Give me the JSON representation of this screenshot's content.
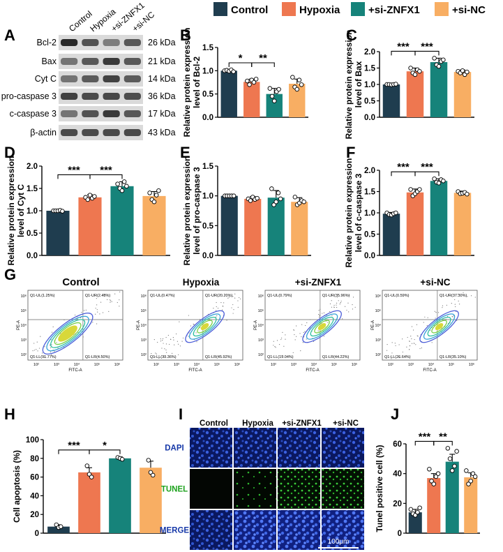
{
  "colors": {
    "control": "#1f3d4f",
    "hypoxia": "#ee7750",
    "sizn": "#16837a",
    "sinc": "#f8ae63",
    "blot_bg": "#dadada",
    "band": "#4a4a4a",
    "dapi": "#1638a8",
    "tunel": "#1ea21e",
    "merge": "#1638a8"
  },
  "legend": [
    "Control",
    "Hypoxia",
    "+si-ZNFX1",
    "+si-NC"
  ],
  "panel_labels": {
    "A": "A",
    "B": "B",
    "C": "C",
    "D": "D",
    "E": "E",
    "F": "F",
    "G": "G",
    "H": "H",
    "I": "I",
    "J": "J"
  },
  "western": {
    "lanes": [
      "Control",
      "Hypoxia",
      "+si-ZNFX1",
      "+si-NC"
    ],
    "rows": [
      {
        "name": "Bcl-2",
        "kda": "26 kDa",
        "levels": [
          1.0,
          0.76,
          0.5,
          0.72
        ]
      },
      {
        "name": "Bax",
        "kda": "21 kDa",
        "levels": [
          0.55,
          0.72,
          0.9,
          0.72
        ]
      },
      {
        "name": "Cyt C",
        "kda": "14 kDa",
        "levels": [
          0.55,
          0.7,
          0.85,
          0.7
        ]
      },
      {
        "name": "pro-caspase 3",
        "kda": "36 kDa",
        "levels": [
          0.85,
          0.8,
          0.82,
          0.78
        ]
      },
      {
        "name": "c-caspase 3",
        "kda": "17 kDa",
        "levels": [
          0.55,
          0.75,
          0.9,
          0.72
        ]
      },
      {
        "name": "β-actin",
        "kda": "43 kDa",
        "levels": [
          0.8,
          0.8,
          0.8,
          0.8
        ]
      }
    ]
  },
  "chart_data": [
    {
      "id": "B",
      "type": "bar",
      "categories": [
        "Control",
        "Hypoxia",
        "+si-ZNFX1",
        "+si-NC"
      ],
      "values": [
        1.0,
        0.76,
        0.5,
        0.72
      ],
      "errors": [
        0.02,
        0.06,
        0.12,
        0.1
      ],
      "points": [
        [
          1.0,
          1.01,
          0.99,
          1.02,
          0.98
        ],
        [
          0.78,
          0.7,
          0.8,
          0.75,
          0.82
        ],
        [
          0.62,
          0.45,
          0.35,
          0.55,
          0.6
        ],
        [
          0.86,
          0.65,
          0.6,
          0.8,
          0.7
        ]
      ],
      "ylabel": "Relative protein expression level of Bcl-2",
      "ylim": [
        0,
        1.5
      ],
      "yticks": [
        "0.0",
        "0.5",
        "1.0",
        "1.5"
      ],
      "sig": [
        {
          "from": 0,
          "to": 1,
          "label": "*"
        },
        {
          "from": 1,
          "to": 2,
          "label": "**"
        }
      ]
    },
    {
      "id": "C",
      "type": "bar",
      "categories": [
        "Control",
        "Hypoxia",
        "+si-ZNFX1",
        "+si-NC"
      ],
      "values": [
        1.0,
        1.4,
        1.68,
        1.38
      ],
      "errors": [
        0.02,
        0.1,
        0.12,
        0.06
      ],
      "points": [
        [
          1.0,
          1.0,
          0.99,
          1.0,
          1.01
        ],
        [
          1.5,
          1.35,
          1.3,
          1.45,
          1.4
        ],
        [
          1.8,
          1.6,
          1.55,
          1.7,
          1.75
        ],
        [
          1.4,
          1.35,
          1.42,
          1.3,
          1.38
        ]
      ],
      "ylabel": "Relative protein expression level of Bax",
      "ylim": [
        0,
        2.0
      ],
      "yticks": [
        "0.0",
        "0.5",
        "1.0",
        "1.5",
        "2.0"
      ],
      "sig": [
        {
          "from": 0,
          "to": 1,
          "label": "***"
        },
        {
          "from": 1,
          "to": 2,
          "label": "***"
        }
      ]
    },
    {
      "id": "D",
      "type": "bar",
      "categories": [
        "Control",
        "Hypoxia",
        "+si-ZNFX1",
        "+si-NC"
      ],
      "values": [
        1.0,
        1.3,
        1.55,
        1.33
      ],
      "errors": [
        0.01,
        0.06,
        0.1,
        0.1
      ],
      "points": [
        [
          1.0,
          1.0,
          1.0,
          1.01,
          0.99
        ],
        [
          1.3,
          1.25,
          1.35,
          1.28,
          1.32
        ],
        [
          1.6,
          1.5,
          1.45,
          1.65,
          1.55
        ],
        [
          1.4,
          1.25,
          1.2,
          1.35,
          1.45
        ]
      ],
      "ylabel": "Relative protein expression level of Cyt C",
      "ylim": [
        0,
        2.0
      ],
      "yticks": [
        "0.0",
        "0.5",
        "1.0",
        "1.5",
        "2.0"
      ],
      "sig": [
        {
          "from": 0,
          "to": 1,
          "label": "***"
        },
        {
          "from": 1,
          "to": 2,
          "label": "***"
        }
      ]
    },
    {
      "id": "E",
      "type": "bar",
      "categories": [
        "Control",
        "Hypoxia",
        "+si-ZNFX1",
        "+si-NC"
      ],
      "values": [
        1.0,
        0.95,
        0.97,
        0.9
      ],
      "errors": [
        0.01,
        0.04,
        0.12,
        0.07
      ],
      "points": [
        [
          1.0,
          1.0,
          1.0,
          1.0,
          1.0
        ],
        [
          0.95,
          0.92,
          0.98,
          0.94,
          0.96
        ],
        [
          1.12,
          0.85,
          0.9,
          1.05,
          0.95
        ],
        [
          0.98,
          0.85,
          0.88,
          0.92,
          0.9
        ]
      ],
      "ylabel": "Relative protein expression level of pro-caspase 3",
      "ylim": [
        0,
        1.5
      ],
      "yticks": [
        "0.0",
        "0.5",
        "1.0",
        "1.5"
      ],
      "sig": []
    },
    {
      "id": "F",
      "type": "bar",
      "categories": [
        "Control",
        "Hypoxia",
        "+si-ZNFX1",
        "+si-NC"
      ],
      "values": [
        0.98,
        1.48,
        1.75,
        1.47
      ],
      "errors": [
        0.03,
        0.08,
        0.05,
        0.04
      ],
      "points": [
        [
          1.0,
          0.96,
          0.95,
          0.98,
          1.0
        ],
        [
          1.55,
          1.4,
          1.45,
          1.5,
          1.55
        ],
        [
          1.8,
          1.72,
          1.7,
          1.78,
          1.75
        ],
        [
          1.5,
          1.45,
          1.46,
          1.48,
          1.44
        ]
      ],
      "ylabel": "Relative protein expression level of c-caspase 3",
      "ylim": [
        0,
        2.0
      ],
      "yticks": [
        "0.0",
        "0.5",
        "1.0",
        "1.5",
        "2.0"
      ],
      "sig": [
        {
          "from": 0,
          "to": 1,
          "label": "***"
        },
        {
          "from": 1,
          "to": 2,
          "label": "***"
        }
      ]
    },
    {
      "id": "H",
      "type": "bar",
      "categories": [
        "Control",
        "Hypoxia",
        "+si-ZNFX1",
        "+si-NC"
      ],
      "values": [
        7,
        65,
        80,
        70
      ],
      "errors": [
        2,
        5,
        1.5,
        7
      ],
      "points": [
        [
          9,
          6,
          7
        ],
        [
          72,
          63,
          60
        ],
        [
          81,
          80,
          79
        ],
        [
          78,
          65,
          62
        ]
      ],
      "ylabel": "Cell apoptosis (%)",
      "ylim": [
        0,
        100
      ],
      "yticks": [
        "0",
        "20",
        "40",
        "60",
        "80",
        "100"
      ],
      "sig": [
        {
          "from": 0,
          "to": 1,
          "label": "***"
        },
        {
          "from": 1,
          "to": 2,
          "label": "*"
        }
      ]
    },
    {
      "id": "J",
      "type": "bar",
      "categories": [
        "Control",
        "Hypoxia",
        "+si-ZNFX1",
        "+si-NC"
      ],
      "values": [
        14,
        37,
        48,
        37.5
      ],
      "errors": [
        2,
        3,
        5,
        3
      ],
      "points": [
        [
          16,
          13,
          12,
          14,
          17
        ],
        [
          43,
          35,
          33,
          38,
          40
        ],
        [
          57,
          50,
          42,
          45,
          55
        ],
        [
          42,
          33,
          35,
          40,
          38
        ]
      ],
      "ylabel": "Tunel positive cell (%)",
      "ylim": [
        0,
        60
      ],
      "yticks": [
        "0",
        "20",
        "40",
        "60"
      ],
      "sig": [
        {
          "from": 0,
          "to": 1,
          "label": "***"
        },
        {
          "from": 1,
          "to": 2,
          "label": "**"
        }
      ]
    }
  ],
  "flow": {
    "axis_x": "FITC-A",
    "axis_y": "PE-A",
    "ticks": [
      "10²",
      "10³",
      "10⁴",
      "10⁵",
      "10⁶"
    ],
    "panels": [
      {
        "title": "Control",
        "ul": "Q1-UL(1.25%)",
        "ur": "Q1-UR(2.48%)",
        "ll": "Q1-LL(91.77%)",
        "lr": "Q1-LR(4.50%)"
      },
      {
        "title": "Hypoxia",
        "ul": "Q1-UL(0.47%)",
        "ur": "Q1-UR(20.20%)",
        "ll": "Q1-LL(33.36%)",
        "lr": "Q1-LR(45.92%)"
      },
      {
        "title": "+si-ZNFX1",
        "ul": "Q1-UL(0.79%)",
        "ur": "Q1-UR(35.96%)",
        "ll": "Q1-LL(19.04%)",
        "lr": "Q1-LR(44.22%)"
      },
      {
        "title": "+si-NC",
        "ul": "Q1-UL(0.59%)",
        "ur": "Q1-UR(37.30%)",
        "ll": "Q1-LL(26.64%)",
        "lr": "Q1-LR(35.10%)"
      }
    ]
  },
  "microscopy": {
    "columns": [
      "Control",
      "Hypoxia",
      "+si-ZNFX1",
      "+si-NC"
    ],
    "rows": [
      "DAPI",
      "TUNEL",
      "MERGE"
    ],
    "scalebar": "100μm"
  }
}
